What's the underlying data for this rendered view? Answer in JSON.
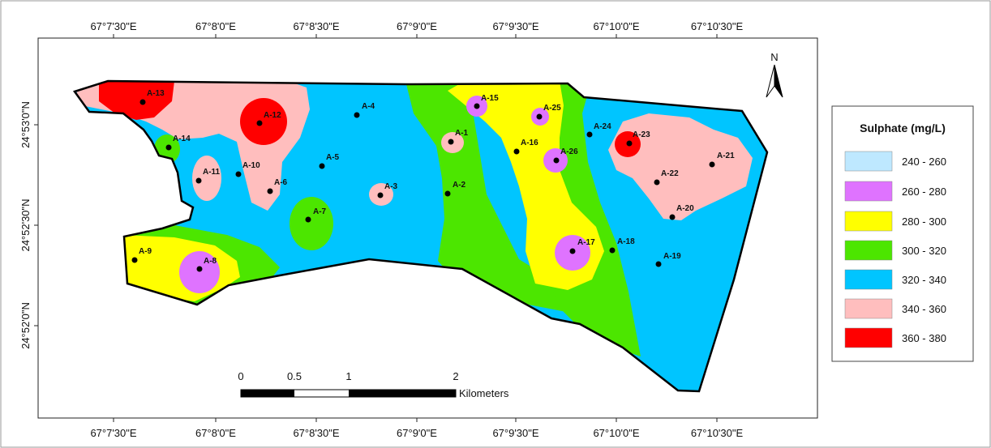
{
  "map": {
    "legend": {
      "title": "Sulphate (mg/L)",
      "classes": [
        {
          "label": "240 - 260",
          "color": "#bee8ff"
        },
        {
          "label": "260 - 280",
          "color": "#df73ff"
        },
        {
          "label": "280 - 300",
          "color": "#ffff00"
        },
        {
          "label": "300 - 320",
          "color": "#4ce600"
        },
        {
          "label": "320 - 340",
          "color": "#00c5ff"
        },
        {
          "label": "340 - 360",
          "color": "#ffbebe"
        },
        {
          "label": "360 - 380",
          "color": "#ff0000"
        }
      ]
    },
    "longitude_labels": [
      "67°7'30\"E",
      "67°8'0\"E",
      "67°8'30\"E",
      "67°9'0\"E",
      "67°9'30\"E",
      "67°10'0\"E",
      "67°10'30\"E"
    ],
    "latitude_labels": [
      "24°53'0\"N",
      "24°52'30\"N",
      "24°52'0\"N"
    ],
    "north_arrow": {
      "label": "N",
      "icon": "north-arrow-icon"
    },
    "scale_bar": {
      "ticks": [
        "0",
        "0.5",
        "1",
        "2"
      ],
      "unit": "Kilometers"
    },
    "sites": [
      "A-1",
      "A-2",
      "A-3",
      "A-4",
      "A-5",
      "A-6",
      "A-7",
      "A-8",
      "A-9",
      "A-10",
      "A-11",
      "A-12",
      "A-13",
      "A-14",
      "A-15",
      "A-16",
      "A-17",
      "A-18",
      "A-19",
      "A-20",
      "A-21",
      "A-22",
      "A-23",
      "A-24",
      "A-25",
      "A-26"
    ]
  }
}
